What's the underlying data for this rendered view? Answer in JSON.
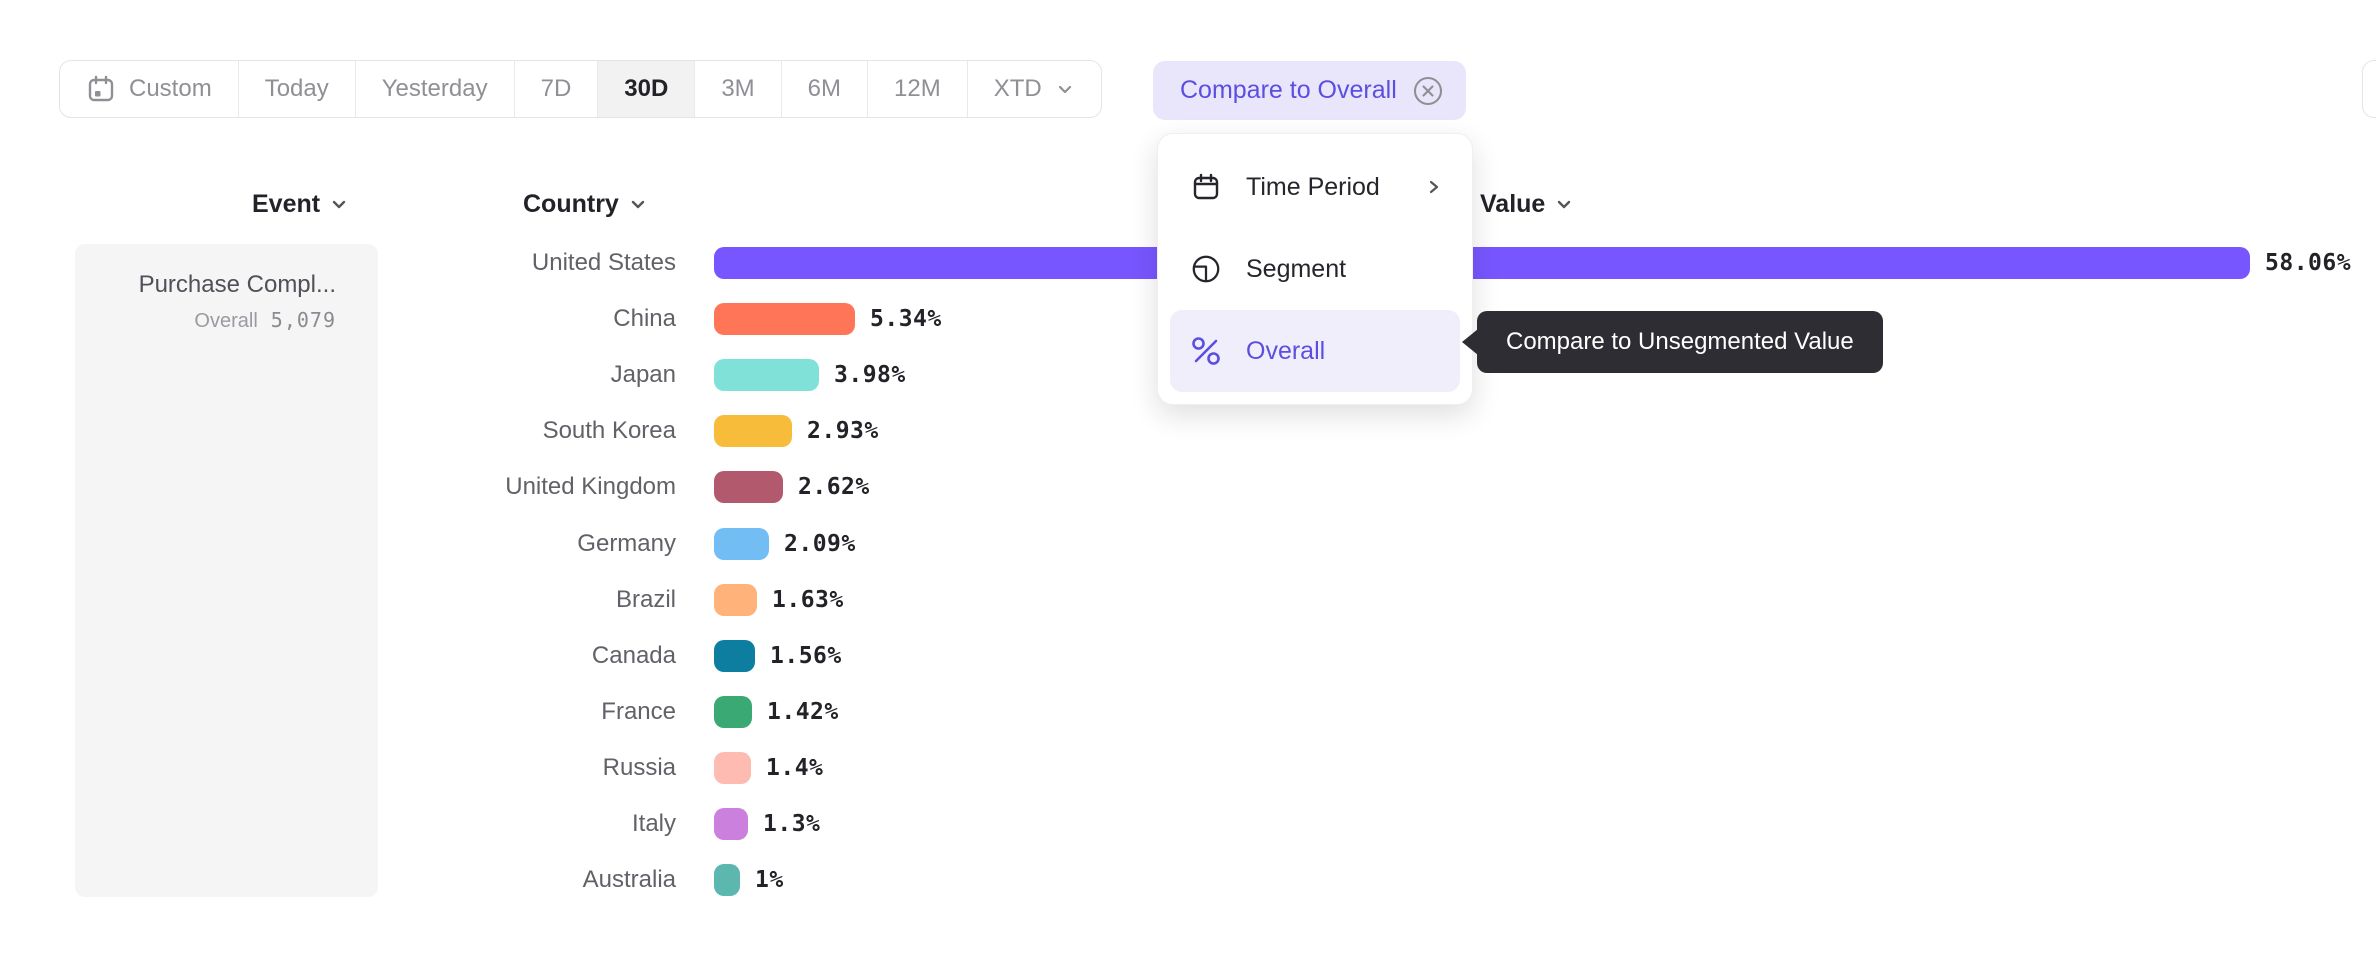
{
  "toolbar": {
    "buttons": [
      {
        "label": "Custom",
        "icon": "calendar-icon"
      },
      {
        "label": "Today"
      },
      {
        "label": "Yesterday"
      },
      {
        "label": "7D"
      },
      {
        "label": "30D",
        "selected": true
      },
      {
        "label": "3M"
      },
      {
        "label": "6M"
      },
      {
        "label": "12M"
      },
      {
        "label": "XTD",
        "icon": "chevron-down-icon"
      }
    ]
  },
  "compare_chip": {
    "label": "Compare to Overall",
    "icon": "x-circle-icon"
  },
  "menu": {
    "items": [
      {
        "label": "Time Period",
        "icon": "calendar-icon",
        "trailing_icon": "chevron-right-icon"
      },
      {
        "label": "Segment",
        "icon": "segment-icon"
      },
      {
        "label": "Overall",
        "icon": "percent-icon",
        "selected": true
      }
    ]
  },
  "tooltip": {
    "text": "Compare to Unsegmented Value"
  },
  "columns": {
    "event": "Event",
    "country": "Country",
    "value": "Value"
  },
  "event_panel": {
    "event_name": "Purchase Compl...",
    "overall_label": "Overall",
    "overall_value": "5,079"
  },
  "colors": {
    "accent_purple": "#5B4EE0",
    "chip_bg": "#E9E6FB",
    "menu_selected_bg": "#F1EEFB",
    "tooltip_bg": "#2E2D34",
    "panel_bg": "#F5F5F6",
    "muted_text": "#8F8F96"
  },
  "chart_data": {
    "type": "bar",
    "orientation": "horizontal",
    "title": "",
    "xlabel": "Value",
    "ylabel": "Country",
    "categories": [
      "United States",
      "China",
      "Japan",
      "South Korea",
      "United Kingdom",
      "Germany",
      "Brazil",
      "Canada",
      "France",
      "Russia",
      "Italy",
      "Australia"
    ],
    "values": [
      58.06,
      5.34,
      3.98,
      2.93,
      2.62,
      2.09,
      1.63,
      1.56,
      1.42,
      1.4,
      1.3,
      1.0
    ],
    "labels": [
      "58.06%",
      "5.34%",
      "3.98%",
      "2.93%",
      "2.62%",
      "2.09%",
      "1.63%",
      "1.56%",
      "1.42%",
      "1.4%",
      "1.3%",
      "1%"
    ],
    "colors": [
      "#7856FF",
      "#FF7557",
      "#80E1D9",
      "#F8BC3B",
      "#B2596E",
      "#72BEF4",
      "#FFB27A",
      "#0D7EA0",
      "#3BA974",
      "#FEBBB2",
      "#CA80DC",
      "#5BB7AF"
    ],
    "xlim": [
      0,
      58.06
    ],
    "grid": false,
    "legend": false,
    "value_labels_shown": true
  }
}
